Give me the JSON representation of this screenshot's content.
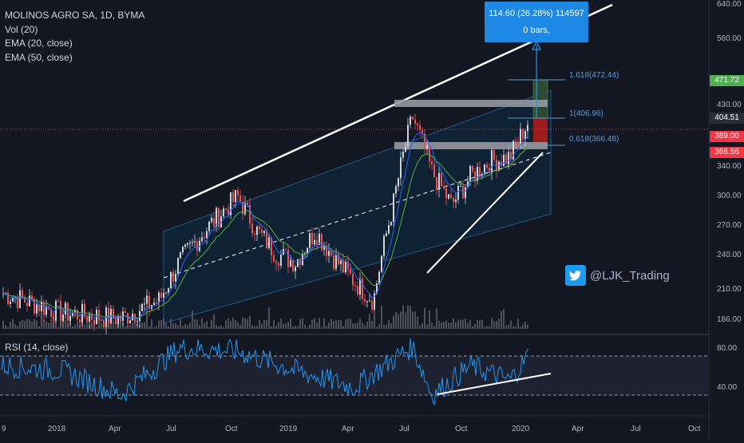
{
  "legend": {
    "symbol": "MOLINOS AGRO SA, 1D, BYMA",
    "volume": "Vol (20)",
    "ema20": "EMA (20, close)",
    "ema50": "EMA (50, close)"
  },
  "rsi_legend": "RSI (14, close)",
  "watermark": {
    "handle": "@LJK_Trading",
    "icon": "twitter-bird-icon"
  },
  "measure_box": {
    "line1": "114.60 (26.28%) 114597",
    "line2": "0 bars,"
  },
  "fib_labels": [
    "1.618(472.44)",
    "1(406.96)",
    "0.618(366.48)"
  ],
  "price_axis": [
    "640.00",
    "560.00",
    "430.00",
    "340.00",
    "300.00",
    "270.00",
    "240.00",
    "210.00",
    "186.00"
  ],
  "price_tags": [
    {
      "label": "471.72",
      "color": "#4caf50"
    },
    {
      "label": "404.51",
      "color": "#2a2e39"
    },
    {
      "label": "389.00",
      "color": "#f23645"
    },
    {
      "label": "366.56",
      "color": "#f23645"
    }
  ],
  "rsi_axis": [
    "80.00",
    "40.00"
  ],
  "time_axis": [
    "9",
    "2018",
    "Apr",
    "Jul",
    "Oct",
    "2019",
    "Apr",
    "Jul",
    "Oct",
    "2020",
    "Apr",
    "Jul",
    "Oct"
  ],
  "colors": {
    "background": "#131722",
    "up": "#ef5350",
    "down": "#d1d4dc",
    "ema20": "#2962ff",
    "ema50": "#4caf50",
    "channel": "#1e5a8a",
    "fib": "#5b9bd5",
    "accent": "#2196f3"
  },
  "chart_data": {
    "type": "candlestick",
    "symbol": "MOLINOS AGRO SA, 1D, BYMA",
    "y_axis_ticks": [
      186,
      210,
      240,
      270,
      300,
      340,
      430,
      560,
      640
    ],
    "y_scale": "log",
    "last_price": 404.51,
    "approx_closes": [
      {
        "x": "2017-10",
        "y": 205
      },
      {
        "x": "2018-01",
        "y": 190
      },
      {
        "x": "2018-04",
        "y": 186
      },
      {
        "x": "2018-06",
        "y": 200
      },
      {
        "x": "2018-07",
        "y": 232
      },
      {
        "x": "2018-08",
        "y": 255
      },
      {
        "x": "2018-10",
        "y": 300
      },
      {
        "x": "2018-11",
        "y": 262
      },
      {
        "x": "2018-12",
        "y": 240
      },
      {
        "x": "2019-01",
        "y": 232
      },
      {
        "x": "2019-02",
        "y": 262
      },
      {
        "x": "2019-03",
        "y": 235
      },
      {
        "x": "2019-04",
        "y": 215
      },
      {
        "x": "2019-05",
        "y": 200
      },
      {
        "x": "2019-06",
        "y": 290
      },
      {
        "x": "2019-07",
        "y": 410
      },
      {
        "x": "2019-08",
        "y": 330
      },
      {
        "x": "2019-09",
        "y": 290
      },
      {
        "x": "2019-10",
        "y": 325
      },
      {
        "x": "2019-11",
        "y": 345
      },
      {
        "x": "2019-12",
        "y": 350
      },
      {
        "x": "2020-01",
        "y": 404.51
      }
    ],
    "fibonacci": [
      {
        "level": 1.618,
        "price": 472.44
      },
      {
        "level": 1,
        "price": 406.96
      },
      {
        "level": 0.618,
        "price": 366.48
      }
    ],
    "measure": {
      "change": 114.6,
      "percent": 26.28,
      "volume": 114597,
      "bars": 0
    },
    "rsi": {
      "period": 14,
      "levels": [
        30,
        70
      ],
      "axis_ticks": [
        40,
        80
      ],
      "approx_values": [
        {
          "x": "2017-10",
          "y": 60
        },
        {
          "x": "2018-01",
          "y": 55
        },
        {
          "x": "2018-04",
          "y": 30
        },
        {
          "x": "2018-07",
          "y": 78
        },
        {
          "x": "2018-10",
          "y": 75
        },
        {
          "x": "2019-01",
          "y": 55
        },
        {
          "x": "2019-04",
          "y": 38
        },
        {
          "x": "2019-07",
          "y": 80
        },
        {
          "x": "2019-08",
          "y": 30
        },
        {
          "x": "2019-10",
          "y": 60
        },
        {
          "x": "2019-12",
          "y": 45
        },
        {
          "x": "2020-01",
          "y": 72
        }
      ]
    }
  }
}
